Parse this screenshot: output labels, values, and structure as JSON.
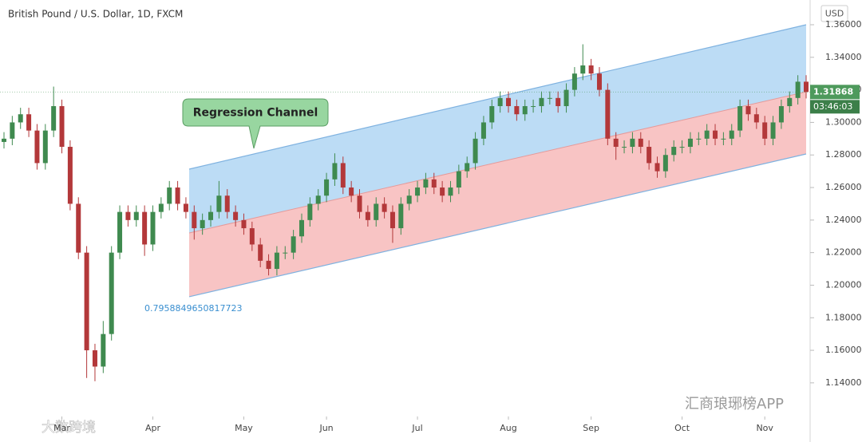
{
  "chart_data": {
    "type": "candlestick",
    "title": "British Pound / U.S. Dollar, 1D, FXCM",
    "currency": "USD",
    "categories": [
      null,
      null,
      null,
      null,
      null,
      null,
      null,
      "Mar",
      null,
      null,
      null,
      null,
      null,
      null,
      null,
      null,
      null,
      null,
      "Apr",
      null,
      null,
      null,
      null,
      null,
      null,
      null,
      null,
      null,
      null,
      "May",
      null,
      null,
      null,
      null,
      null,
      null,
      null,
      null,
      null,
      "Jun",
      null,
      null,
      null,
      null,
      null,
      null,
      null,
      null,
      null,
      null,
      "Jul",
      null,
      null,
      null,
      null,
      null,
      null,
      null,
      null,
      null,
      null,
      "Aug",
      null,
      null,
      null,
      null,
      null,
      null,
      null,
      null,
      null,
      "Sep",
      null,
      null,
      null,
      null,
      null,
      null,
      null,
      null,
      null,
      null,
      "Oct",
      null,
      null,
      null,
      null,
      null,
      null,
      null,
      null,
      null,
      "Nov",
      null,
      null,
      null,
      null,
      null
    ],
    "open": [
      1.288,
      1.29,
      1.3,
      1.305,
      1.295,
      1.275,
      1.295,
      1.31,
      1.285,
      1.25,
      1.22,
      1.16,
      1.15,
      1.17,
      1.22,
      1.245,
      1.24,
      1.245,
      1.225,
      1.245,
      1.25,
      1.26,
      1.25,
      1.245,
      1.235,
      1.24,
      1.245,
      1.255,
      1.245,
      1.24,
      1.235,
      1.225,
      1.215,
      1.21,
      1.22,
      1.22,
      1.23,
      1.24,
      1.25,
      1.255,
      1.265,
      1.275,
      1.26,
      1.255,
      1.245,
      1.24,
      1.25,
      1.245,
      1.235,
      1.25,
      1.255,
      1.26,
      1.265,
      1.26,
      1.255,
      1.26,
      1.27,
      1.275,
      1.29,
      1.3,
      1.31,
      1.315,
      1.31,
      1.305,
      1.31,
      1.31,
      1.315,
      1.315,
      1.31,
      1.32,
      1.33,
      1.335,
      1.33,
      1.32,
      1.29,
      1.285,
      1.285,
      1.29,
      1.285,
      1.275,
      1.27,
      1.28,
      1.285,
      1.285,
      1.29,
      1.29,
      1.295,
      1.29,
      1.29,
      1.295,
      1.31,
      1.305,
      1.3,
      1.29,
      1.3,
      1.31,
      1.315,
      1.325
    ],
    "high": [
      1.294,
      1.304,
      1.309,
      1.309,
      1.299,
      1.299,
      1.322,
      1.314,
      1.289,
      1.254,
      1.224,
      1.164,
      1.178,
      1.224,
      1.249,
      1.249,
      1.249,
      1.249,
      1.249,
      1.254,
      1.264,
      1.264,
      1.254,
      1.249,
      1.244,
      1.249,
      1.264,
      1.259,
      1.249,
      1.244,
      1.239,
      1.229,
      1.219,
      1.224,
      1.224,
      1.234,
      1.244,
      1.254,
      1.259,
      1.269,
      1.281,
      1.279,
      1.264,
      1.259,
      1.249,
      1.254,
      1.254,
      1.249,
      1.254,
      1.259,
      1.264,
      1.269,
      1.269,
      1.264,
      1.264,
      1.274,
      1.279,
      1.294,
      1.304,
      1.314,
      1.319,
      1.319,
      1.314,
      1.314,
      1.314,
      1.319,
      1.319,
      1.319,
      1.324,
      1.334,
      1.348,
      1.339,
      1.334,
      1.324,
      1.294,
      1.289,
      1.294,
      1.294,
      1.289,
      1.279,
      1.284,
      1.289,
      1.289,
      1.294,
      1.294,
      1.299,
      1.299,
      1.294,
      1.299,
      1.314,
      1.314,
      1.309,
      1.304,
      1.304,
      1.314,
      1.319,
      1.329,
      1.329
    ],
    "low": [
      1.284,
      1.286,
      1.296,
      1.291,
      1.271,
      1.271,
      1.291,
      1.281,
      1.246,
      1.216,
      1.143,
      1.141,
      1.146,
      1.166,
      1.216,
      1.236,
      1.236,
      1.218,
      1.221,
      1.241,
      1.246,
      1.246,
      1.241,
      1.228,
      1.231,
      1.236,
      1.241,
      1.241,
      1.236,
      1.231,
      1.221,
      1.211,
      1.206,
      1.206,
      1.216,
      1.216,
      1.226,
      1.236,
      1.246,
      1.251,
      1.261,
      1.256,
      1.251,
      1.241,
      1.236,
      1.236,
      1.241,
      1.226,
      1.231,
      1.246,
      1.251,
      1.256,
      1.256,
      1.251,
      1.251,
      1.256,
      1.266,
      1.271,
      1.286,
      1.296,
      1.306,
      1.306,
      1.301,
      1.301,
      1.306,
      1.306,
      1.311,
      1.306,
      1.306,
      1.316,
      1.326,
      1.326,
      1.316,
      1.286,
      1.277,
      1.281,
      1.281,
      1.281,
      1.271,
      1.266,
      1.266,
      1.276,
      1.281,
      1.281,
      1.286,
      1.286,
      1.286,
      1.286,
      1.286,
      1.291,
      1.301,
      1.296,
      1.286,
      1.286,
      1.296,
      1.306,
      1.311,
      1.3147
    ],
    "close": [
      1.29,
      1.3,
      1.305,
      1.295,
      1.275,
      1.295,
      1.31,
      1.285,
      1.25,
      1.22,
      1.16,
      1.15,
      1.17,
      1.22,
      1.245,
      1.24,
      1.245,
      1.225,
      1.245,
      1.25,
      1.26,
      1.25,
      1.245,
      1.235,
      1.24,
      1.245,
      1.255,
      1.245,
      1.24,
      1.235,
      1.225,
      1.215,
      1.21,
      1.22,
      1.22,
      1.23,
      1.24,
      1.25,
      1.255,
      1.265,
      1.275,
      1.26,
      1.255,
      1.245,
      1.24,
      1.25,
      1.245,
      1.235,
      1.25,
      1.255,
      1.26,
      1.265,
      1.26,
      1.255,
      1.26,
      1.27,
      1.275,
      1.29,
      1.3,
      1.31,
      1.315,
      1.31,
      1.305,
      1.31,
      1.31,
      1.315,
      1.315,
      1.31,
      1.32,
      1.33,
      1.335,
      1.33,
      1.32,
      1.29,
      1.285,
      1.285,
      1.29,
      1.285,
      1.275,
      1.27,
      1.28,
      1.285,
      1.285,
      1.29,
      1.29,
      1.295,
      1.29,
      1.29,
      1.295,
      1.31,
      1.305,
      1.3,
      1.29,
      1.3,
      1.31,
      1.315,
      1.325,
      1.3187
    ],
    "up_color": "#3f8a4f",
    "down_color": "#b3383a",
    "channel": {
      "upper": [
        1.2713,
        1.36
      ],
      "middle": [
        1.2321,
        1.3188
      ],
      "lower": [
        1.1929,
        1.2806
      ],
      "upper_color": "#bcdcf5",
      "lower_color": "#f8c4c4",
      "line_color": "#7fb2e0"
    },
    "ylim": [
      1.1316,
      1.3752
    ],
    "yticks": [
      {
        "value": 1.14,
        "label": "1.14000"
      },
      {
        "value": 1.16,
        "label": "1.16000"
      },
      {
        "value": 1.18,
        "label": "1.18000"
      },
      {
        "value": 1.2,
        "label": "1.20000"
      },
      {
        "value": 1.22,
        "label": "1.22000"
      },
      {
        "value": 1.24,
        "label": "1.24000"
      },
      {
        "value": 1.26,
        "label": "1.26000"
      },
      {
        "value": 1.28,
        "label": "1.28000"
      },
      {
        "value": 1.3,
        "label": "1.30000"
      },
      {
        "value": 1.32,
        "label": "1.32000"
      },
      {
        "value": 1.34,
        "label": "1.34000"
      },
      {
        "value": 1.36,
        "label": "1.36000"
      }
    ],
    "last_price": {
      "value": 1.31868,
      "label": "1.31868"
    },
    "countdown": "03:46:03",
    "annotations": {
      "callout": "Regression Channel",
      "deviation": "0.7958849650817723"
    },
    "watermarks": [
      "大数跨境",
      "汇商琅琊榜APP"
    ]
  }
}
